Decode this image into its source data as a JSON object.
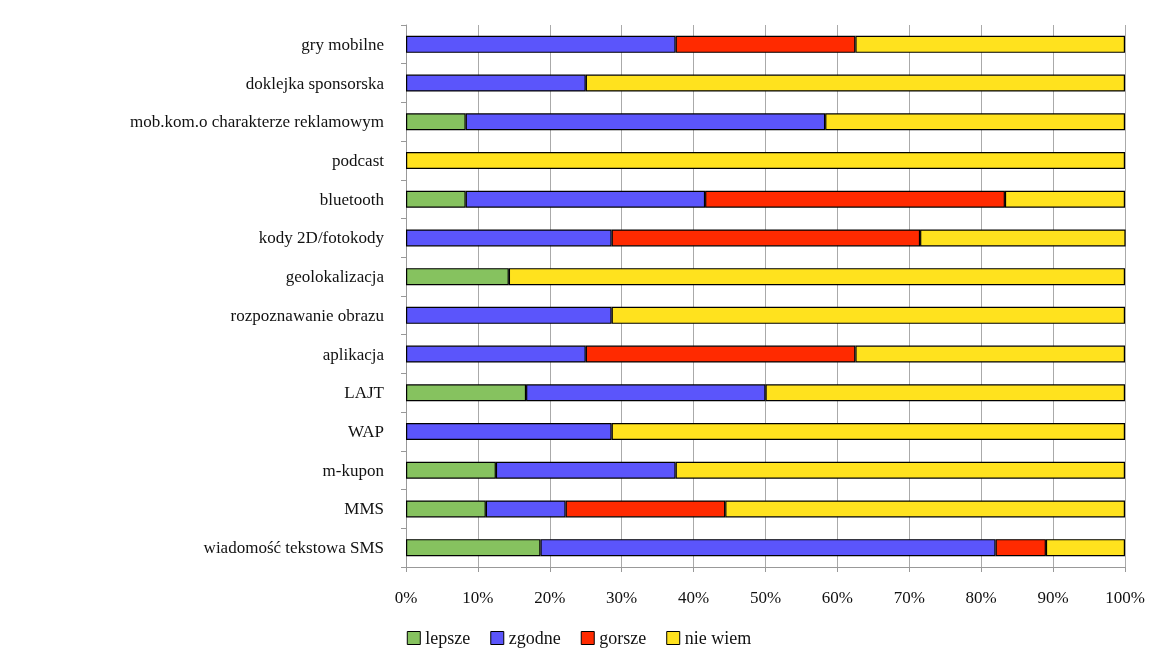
{
  "chart_data": {
    "type": "bar",
    "orientation": "horizontal",
    "stacked": true,
    "categories": [
      "gry mobilne",
      "doklejka sponsorska",
      "mob.kom.o charakterze reklamowym",
      "podcast",
      "bluetooth",
      "kody 2D/fotokody",
      "geolokalizacja",
      "rozpoznawanie obrazu",
      "aplikacja",
      "LAJT",
      "WAP",
      "m-kupon",
      "MMS",
      "wiadomość tekstowa SMS"
    ],
    "series": [
      {
        "name": "lepsze",
        "color": "#86c25f",
        "values": [
          0,
          0,
          8.3,
          0,
          8.3,
          0,
          14.3,
          0,
          0,
          16.7,
          0,
          12.5,
          11.1,
          18.7
        ]
      },
      {
        "name": "zgodne",
        "color": "#5b55fb",
        "values": [
          37.5,
          25,
          50,
          0,
          33.3,
          28.6,
          0,
          28.6,
          25,
          33.3,
          28.6,
          25,
          11.1,
          63.3
        ]
      },
      {
        "name": "gorsze",
        "color": "#ff2a00",
        "values": [
          25,
          0,
          0,
          0,
          41.7,
          42.9,
          0,
          0,
          37.5,
          0,
          0,
          0,
          22.2,
          7
        ]
      },
      {
        "name": "nie wiem",
        "color": "#ffe21e",
        "values": [
          37.5,
          75,
          41.7,
          100,
          16.7,
          28.6,
          85.7,
          71.4,
          37.5,
          50,
          71.4,
          62.5,
          55.6,
          11
        ]
      }
    ],
    "xlim": [
      0,
      100
    ],
    "xticks": [
      {
        "value": 0,
        "label": "0%"
      },
      {
        "value": 10,
        "label": "10%"
      },
      {
        "value": 20,
        "label": "20%"
      },
      {
        "value": 30,
        "label": "30%"
      },
      {
        "value": 40,
        "label": "40%"
      },
      {
        "value": 50,
        "label": "50%"
      },
      {
        "value": 60,
        "label": "60%"
      },
      {
        "value": 70,
        "label": "70%"
      },
      {
        "value": 80,
        "label": "80%"
      },
      {
        "value": 90,
        "label": "90%"
      },
      {
        "value": 100,
        "label": "100%"
      }
    ],
    "grid": "x",
    "legend": "bottom"
  }
}
